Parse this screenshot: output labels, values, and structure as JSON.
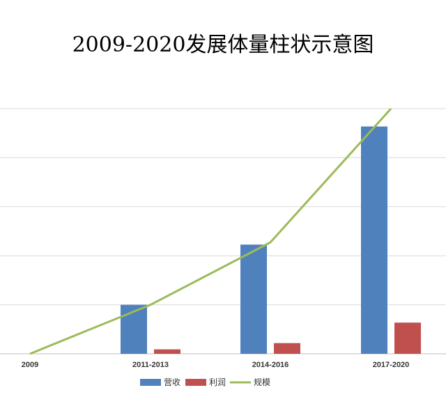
{
  "chart_data": {
    "type": "bar",
    "title": "2009-2020发展体量柱状示意图",
    "categories": [
      "2009",
      "2011-2013",
      "2014-2016",
      "2017-2020"
    ],
    "ylim": [
      0,
      5.6
    ],
    "grid": true,
    "legend_position": "bottom",
    "series": [
      {
        "name": "营收",
        "kind": "bar",
        "color": "#4F81BD",
        "values": [
          0,
          1.1,
          2.45,
          5.1
        ]
      },
      {
        "name": "利润",
        "kind": "bar",
        "color": "#C0504D",
        "values": [
          0,
          0.1,
          0.24,
          0.7
        ]
      },
      {
        "name": "规模",
        "kind": "line",
        "color": "#9BBB59",
        "values": [
          0,
          1.1,
          2.5,
          5.5
        ]
      }
    ]
  }
}
